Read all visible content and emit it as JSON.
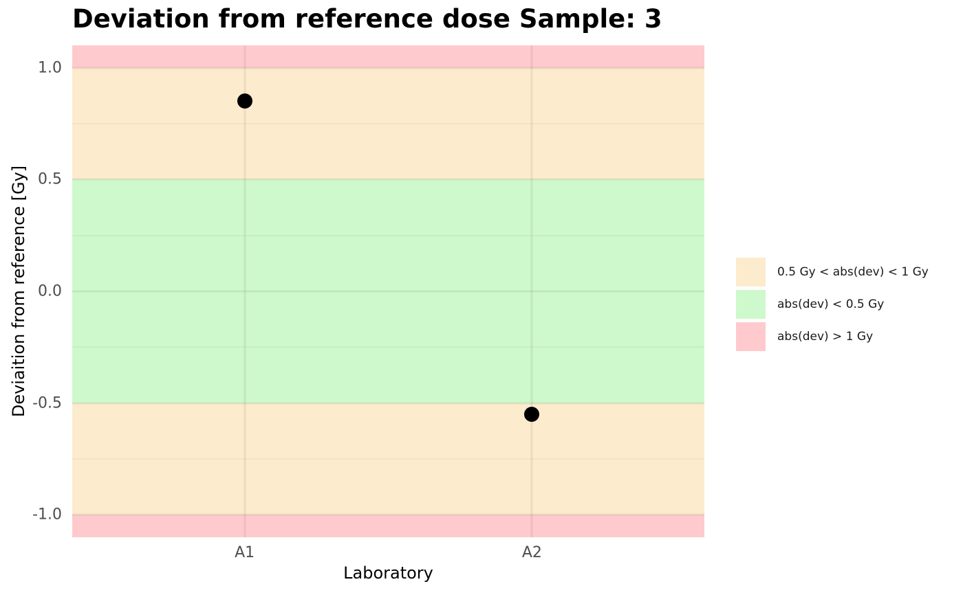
{
  "title": "Deviation from reference dose Sample: 3",
  "chart_data": {
    "type": "scatter",
    "title": "Deviation from reference dose Sample: 3",
    "xlabel": "Laboratory",
    "ylabel": "Deviaition from reference [Gy]",
    "categories": [
      "A1",
      "A2"
    ],
    "values": [
      0.85,
      -0.55
    ],
    "ylim": [
      -1.1,
      1.1
    ],
    "grid": true,
    "legend_position": "right",
    "yticks": [
      {
        "label": "1.0",
        "value": 1.0
      },
      {
        "label": "0.5",
        "value": 0.5
      },
      {
        "label": "0.0",
        "value": 0.0
      },
      {
        "label": "-0.5",
        "value": -0.5
      },
      {
        "label": "-1.0",
        "value": -1.0
      }
    ],
    "minor_gridlines": [
      0.75,
      0.25,
      -0.25,
      -0.75
    ],
    "bands": [
      {
        "zone": "abs(dev) > 1 Gy",
        "from": 1.0,
        "to": 1.1,
        "color": "#FFCACD"
      },
      {
        "zone": "0.5 Gy < abs(dev) < 1 Gy",
        "from": 0.5,
        "to": 1.0,
        "color": "#FDEBCD"
      },
      {
        "zone": "abs(dev) < 0.5 Gy",
        "from": -0.5,
        "to": 0.5,
        "color": "#CEF9CC"
      },
      {
        "zone": "0.5 Gy < abs(dev) < 1 Gy",
        "from": -1.0,
        "to": -0.5,
        "color": "#FDEBCD"
      },
      {
        "zone": "abs(dev) > 1 Gy",
        "from": -1.1,
        "to": -1.0,
        "color": "#FFCACD"
      }
    ],
    "legend": [
      {
        "label": "0.5 Gy < abs(dev) < 1 Gy",
        "color": "#FDEBCD"
      },
      {
        "label": "abs(dev) < 0.5 Gy",
        "color": "#CEF9CC"
      },
      {
        "label": "abs(dev) > 1 Gy",
        "color": "#FFCACD"
      }
    ],
    "point_color": "#000000"
  },
  "colors": {
    "background": "#ffffff",
    "grid_major": "rgba(90,80,70,0.10)",
    "grid_minor": "rgba(90,80,70,0.06)",
    "tick_text": "#4d4d4d",
    "title_text": "#000000"
  }
}
